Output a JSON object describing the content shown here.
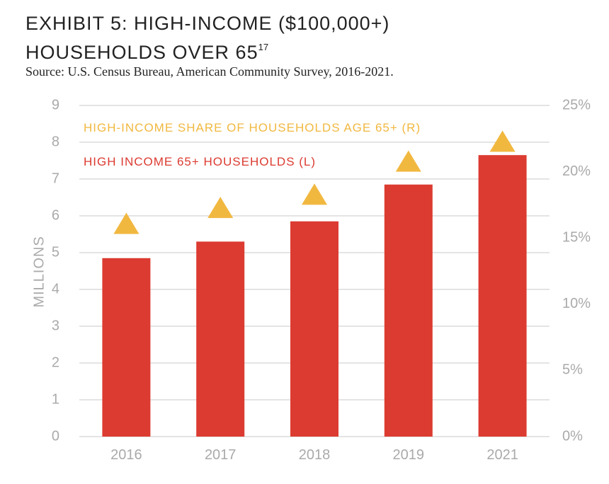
{
  "title": {
    "line1": "EXHIBIT 5: HIGH-INCOME ($100,000+)",
    "line2": "HOUSEHOLDS OVER 65",
    "superscript": "17"
  },
  "source": "Source: U.S. Census Bureau, American Community Survey, 2016-2021.",
  "colors": {
    "bars": "#dc3b31",
    "triangles": "#f1b840",
    "grid": "#c8c8c8",
    "ticks": "#aaaaaa"
  },
  "chart_data": {
    "type": "bar",
    "categories": [
      "2016",
      "2017",
      "2018",
      "2019",
      "2021"
    ],
    "series": [
      {
        "name": "HIGH INCOME 65+ HOUSEHOLDS (L)",
        "axis": "left",
        "mark": "bar",
        "values": [
          4.85,
          5.3,
          5.85,
          6.85,
          7.65
        ]
      },
      {
        "name": "HIGH-INCOME SHARE OF HOUSEHOLDS AGE 65+ (R)",
        "axis": "right",
        "mark": "triangle",
        "values": [
          16.1,
          17.3,
          18.3,
          20.8,
          22.3
        ]
      }
    ],
    "ylabel": "MILLIONS",
    "ylim": [
      0,
      9
    ],
    "y_ticks": [
      "0",
      "1",
      "2",
      "3",
      "4",
      "5",
      "6",
      "7",
      "8",
      "9"
    ],
    "y2lim": [
      0,
      25
    ],
    "y2_ticks": [
      "0%",
      "5%",
      "10%",
      "15%",
      "20%",
      "25%"
    ],
    "grid": true,
    "legend_position": "top-left"
  }
}
